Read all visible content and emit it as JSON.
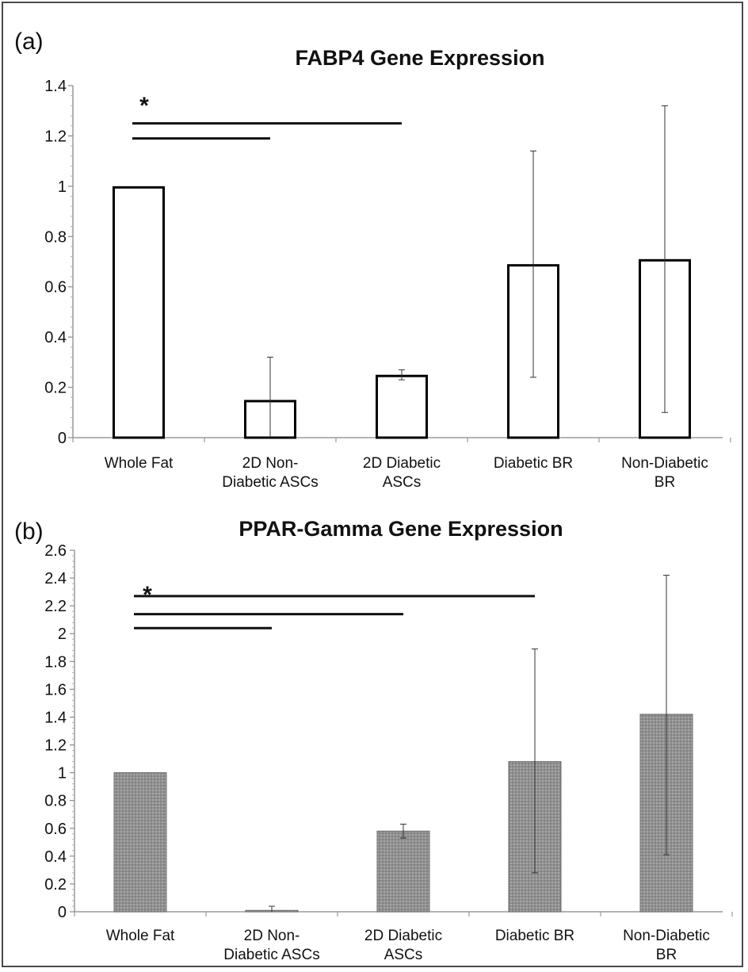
{
  "chart_data": [
    {
      "type": "bar",
      "panel_label": "(a)",
      "title": "FABP4 Gene Expression",
      "categories": [
        [
          "Whole Fat"
        ],
        [
          "2D Non-",
          "Diabetic ASCs"
        ],
        [
          "2D Diabetic",
          "ASCs"
        ],
        [
          "Diabetic BR"
        ],
        [
          "Non-Diabetic",
          "BR"
        ]
      ],
      "values": [
        1.0,
        0.15,
        0.25,
        0.69,
        0.71
      ],
      "error_low": [
        1.0,
        0.0,
        0.23,
        0.24,
        0.1
      ],
      "error_high": [
        1.0,
        0.32,
        0.27,
        1.14,
        1.32
      ],
      "ylim": [
        0,
        1.4
      ],
      "yticks": [
        "0",
        "0.2",
        "0.4",
        "0.6",
        "0.8",
        "1",
        "1.2",
        "1.4"
      ],
      "yticks_values": [
        0,
        0.2,
        0.4,
        0.6,
        0.8,
        1,
        1.2,
        1.4
      ],
      "bar_fill": "#ffffff",
      "significance_marker": "*",
      "significance_lines": [
        {
          "from": 0,
          "to": 2,
          "y": 1.25
        },
        {
          "from": 0,
          "to": 1,
          "y": 1.19
        }
      ]
    },
    {
      "type": "bar",
      "panel_label": "(b)",
      "title": "PPAR-Gamma Gene Expression",
      "categories": [
        [
          "Whole Fat"
        ],
        [
          "2D Non-",
          "Diabetic ASCs"
        ],
        [
          "2D Diabetic",
          "ASCs"
        ],
        [
          "Diabetic BR"
        ],
        [
          "Non-Diabetic",
          "BR"
        ]
      ],
      "values": [
        1.0,
        0.01,
        0.58,
        1.08,
        1.42
      ],
      "error_low": [
        1.0,
        0.0,
        0.53,
        0.28,
        0.41
      ],
      "error_high": [
        1.0,
        0.04,
        0.63,
        1.89,
        2.42
      ],
      "ylim": [
        0,
        2.6
      ],
      "yticks": [
        "0",
        "0.2",
        "0.4",
        "0.6",
        "0.8",
        "1",
        "1.2",
        "1.4",
        "1.6",
        "1.8",
        "2",
        "2.2",
        "2.4",
        "2.6"
      ],
      "yticks_values": [
        0,
        0.2,
        0.4,
        0.6,
        0.8,
        1,
        1.2,
        1.4,
        1.6,
        1.8,
        2,
        2.2,
        2.4,
        2.6
      ],
      "bar_fill": "#9a9a9a",
      "significance_marker": "*",
      "significance_lines": [
        {
          "from": 0,
          "to": 3,
          "y": 2.27
        },
        {
          "from": 0,
          "to": 2,
          "y": 2.14
        },
        {
          "from": 0,
          "to": 1,
          "y": 2.04
        }
      ]
    }
  ]
}
